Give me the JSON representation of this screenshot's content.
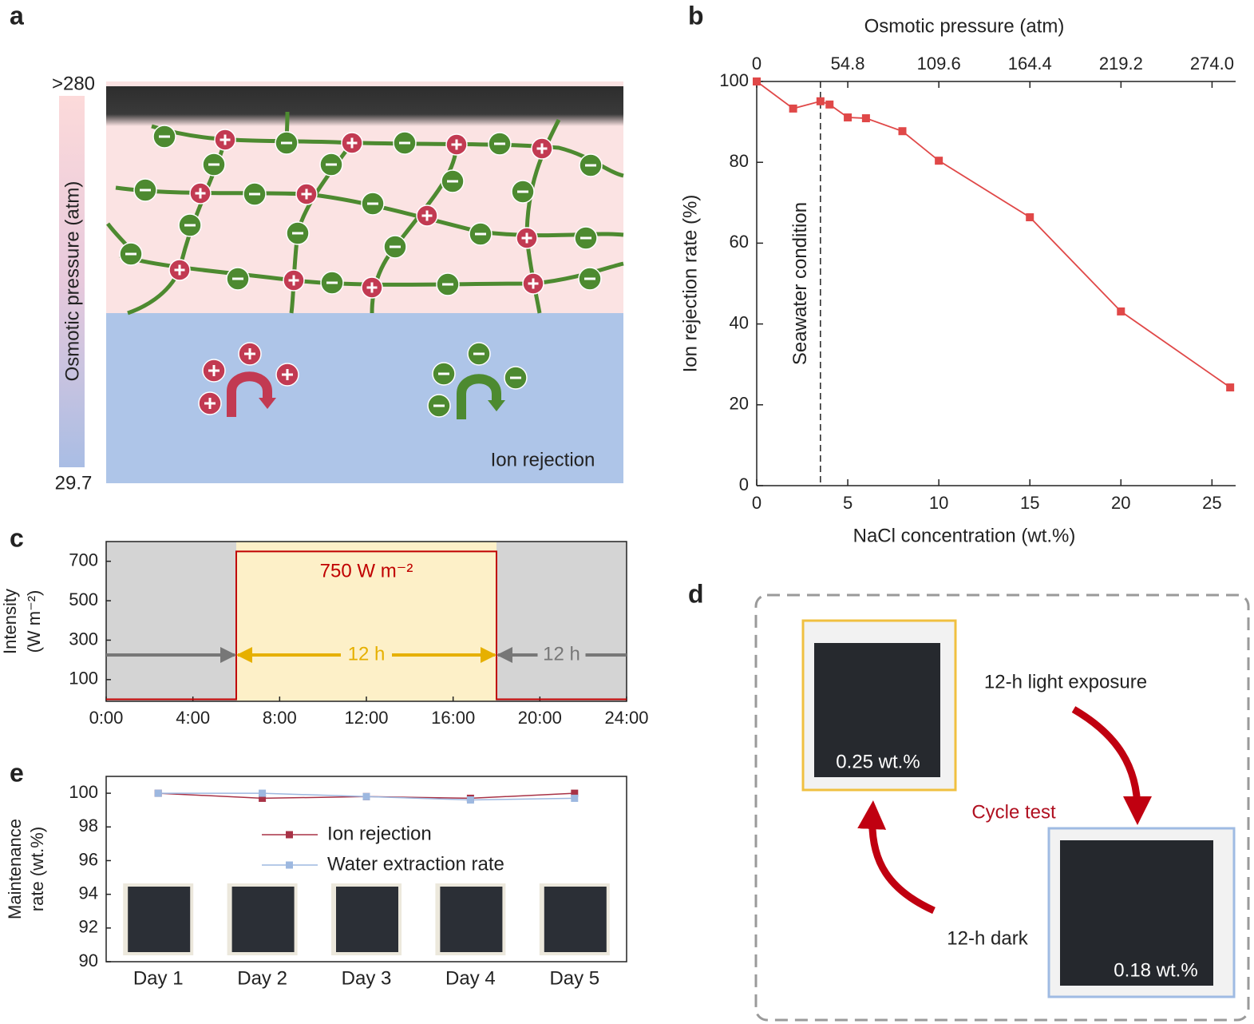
{
  "panel_labels": [
    "a",
    "b",
    "c",
    "d",
    "e"
  ],
  "diagram_a": {
    "scale_top": ">280",
    "scale_bottom": "29.7",
    "scale_label": "Osmotic pressure (atm)",
    "region_label": "Ion rejection"
  },
  "chart_data": [
    {
      "type": "line",
      "xlabel": "NaCl concentration (wt.%)",
      "ylabel": "Ion rejection rate (%)",
      "x2label": "Osmotic pressure (atm)",
      "x": [
        0,
        2,
        3.5,
        4,
        5,
        6,
        8,
        10,
        15,
        20,
        26
      ],
      "values": [
        100,
        93.3,
        95.1,
        94.3,
        91.1,
        90.9,
        87.7,
        80.4,
        66.4,
        43.1,
        24.3
      ],
      "color": "#e04848",
      "xlim": [
        0,
        26.3
      ],
      "xticks": [
        0,
        5,
        10,
        15,
        20,
        25
      ],
      "x2lim": [
        0,
        288.2
      ],
      "x2ticks": [
        0,
        54.8,
        109.6,
        164.4,
        219.2,
        {
          "value": 274,
          "label": "274.0"
        }
      ],
      "ylim": [
        0,
        100
      ],
      "yticks": [
        0,
        20,
        40,
        60,
        80,
        100
      ],
      "annotations": [
        {
          "text": "Seawater condition",
          "x": 3.5
        }
      ]
    },
    {
      "type": "line",
      "ylabel": [
        "Intensity",
        "(W m⁻²)"
      ],
      "x": [
        0,
        6,
        6,
        18,
        18,
        24
      ],
      "values": [
        0,
        0,
        750,
        750,
        0,
        0
      ],
      "color": "#c00000",
      "xlim": [
        0,
        24
      ],
      "xticks": [
        {
          "value": 0,
          "label": "0:00"
        },
        {
          "value": 4,
          "label": "4:00"
        },
        {
          "value": 8,
          "label": "8:00"
        },
        {
          "value": 12,
          "label": "12:00"
        },
        {
          "value": 16,
          "label": "16:00"
        },
        {
          "value": 20,
          "label": "20:00"
        },
        {
          "value": 24,
          "label": "24:00"
        }
      ],
      "ylim": [
        -10,
        800
      ],
      "yticks": [
        100,
        300,
        500,
        700
      ],
      "periods": [
        {
          "x": [
            0,
            6
          ],
          "color": "#d4d4d4"
        },
        {
          "x": [
            6,
            18
          ],
          "color": "#fdf0c8"
        },
        {
          "x": [
            18,
            24
          ],
          "color": "#d4d4d4"
        }
      ],
      "annotations": [
        {
          "text": "750 W m⁻²",
          "color": "#c00000"
        },
        {
          "text": "12 h",
          "x": [
            6,
            18
          ],
          "color": "#e6b000"
        },
        {
          "text": "12 h",
          "x": [
            18,
            24
          ],
          "color": "#777777"
        }
      ]
    },
    {
      "type": "line",
      "ylabel": [
        "Maintenance",
        "rate (wt.%)"
      ],
      "categories": [
        "Day 1",
        "Day 2",
        "Day 3",
        "Day 4",
        "Day 5"
      ],
      "series": [
        {
          "name": "Ion rejection",
          "color": "#a83246",
          "values": [
            100,
            99.7,
            99.8,
            99.7,
            100
          ]
        },
        {
          "name": "Water extraction rate",
          "color": "#9db8e0",
          "values": [
            100,
            100,
            99.8,
            99.6,
            99.7
          ]
        }
      ],
      "ylim": [
        90,
        101
      ],
      "yticks": [
        90,
        92,
        94,
        96,
        98,
        100
      ],
      "legend": "center"
    }
  ],
  "diagram_d": {
    "step_1": "12-h light exposure",
    "center": "Cycle test",
    "step_2": "12-h dark",
    "sample_1": "0.25 wt.%",
    "sample_2": "0.18 wt.%"
  }
}
